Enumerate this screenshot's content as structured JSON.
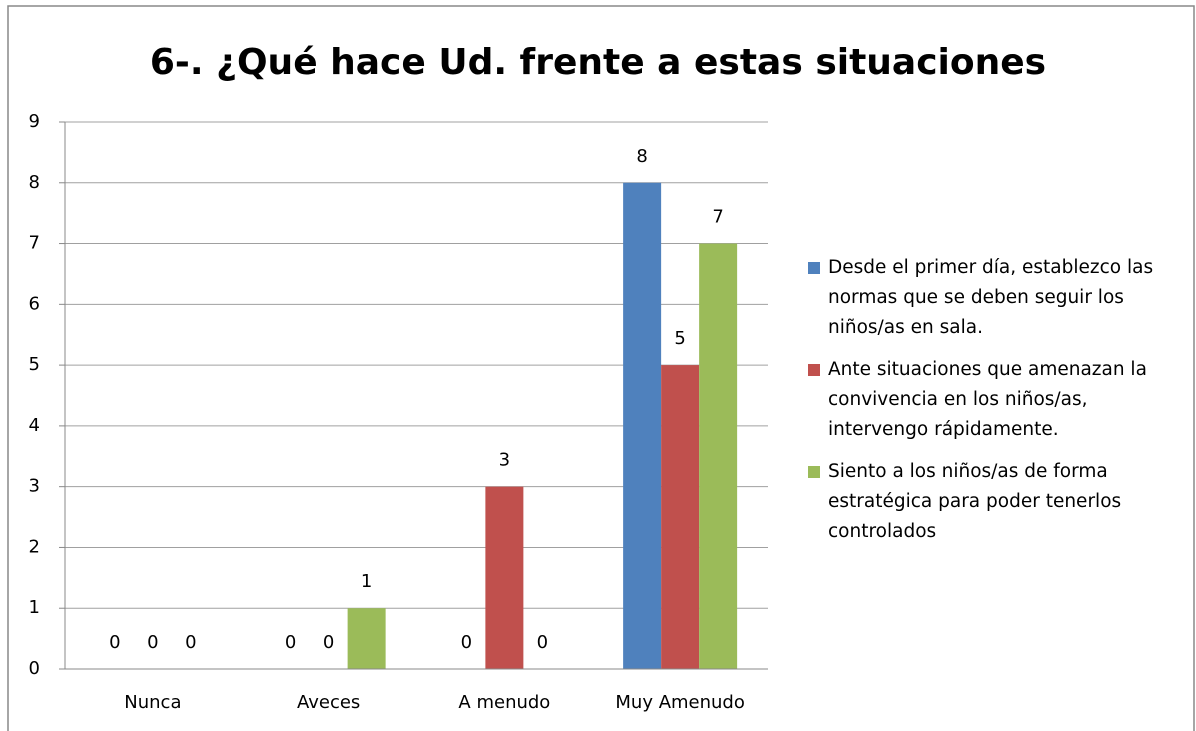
{
  "chart_data": {
    "type": "bar",
    "title": "6-. ¿Qué hace Ud. frente a estas situaciones",
    "categories": [
      "Nunca",
      "Aveces",
      "A menudo",
      "Muy Amenudo"
    ],
    "series": [
      {
        "name": "Desde el primer día, establezco las normas que se deben seguir los niños/as en sala.",
        "color": "#4f81bd",
        "values": [
          0,
          0,
          0,
          8
        ]
      },
      {
        "name": "Ante situaciones que amenazan la convivencia en los niños/as, intervengo rápidamente.",
        "color": "#c0504d",
        "values": [
          0,
          0,
          3,
          5
        ]
      },
      {
        "name": "Siento a los niños/as de forma estratégica para poder tenerlos controlados",
        "color": "#9bbb59",
        "values": [
          0,
          1,
          0,
          7
        ]
      }
    ],
    "ylim": [
      0,
      9
    ],
    "yticks": [
      0,
      1,
      2,
      3,
      4,
      5,
      6,
      7,
      8,
      9
    ],
    "grid": true,
    "legend": "right"
  }
}
